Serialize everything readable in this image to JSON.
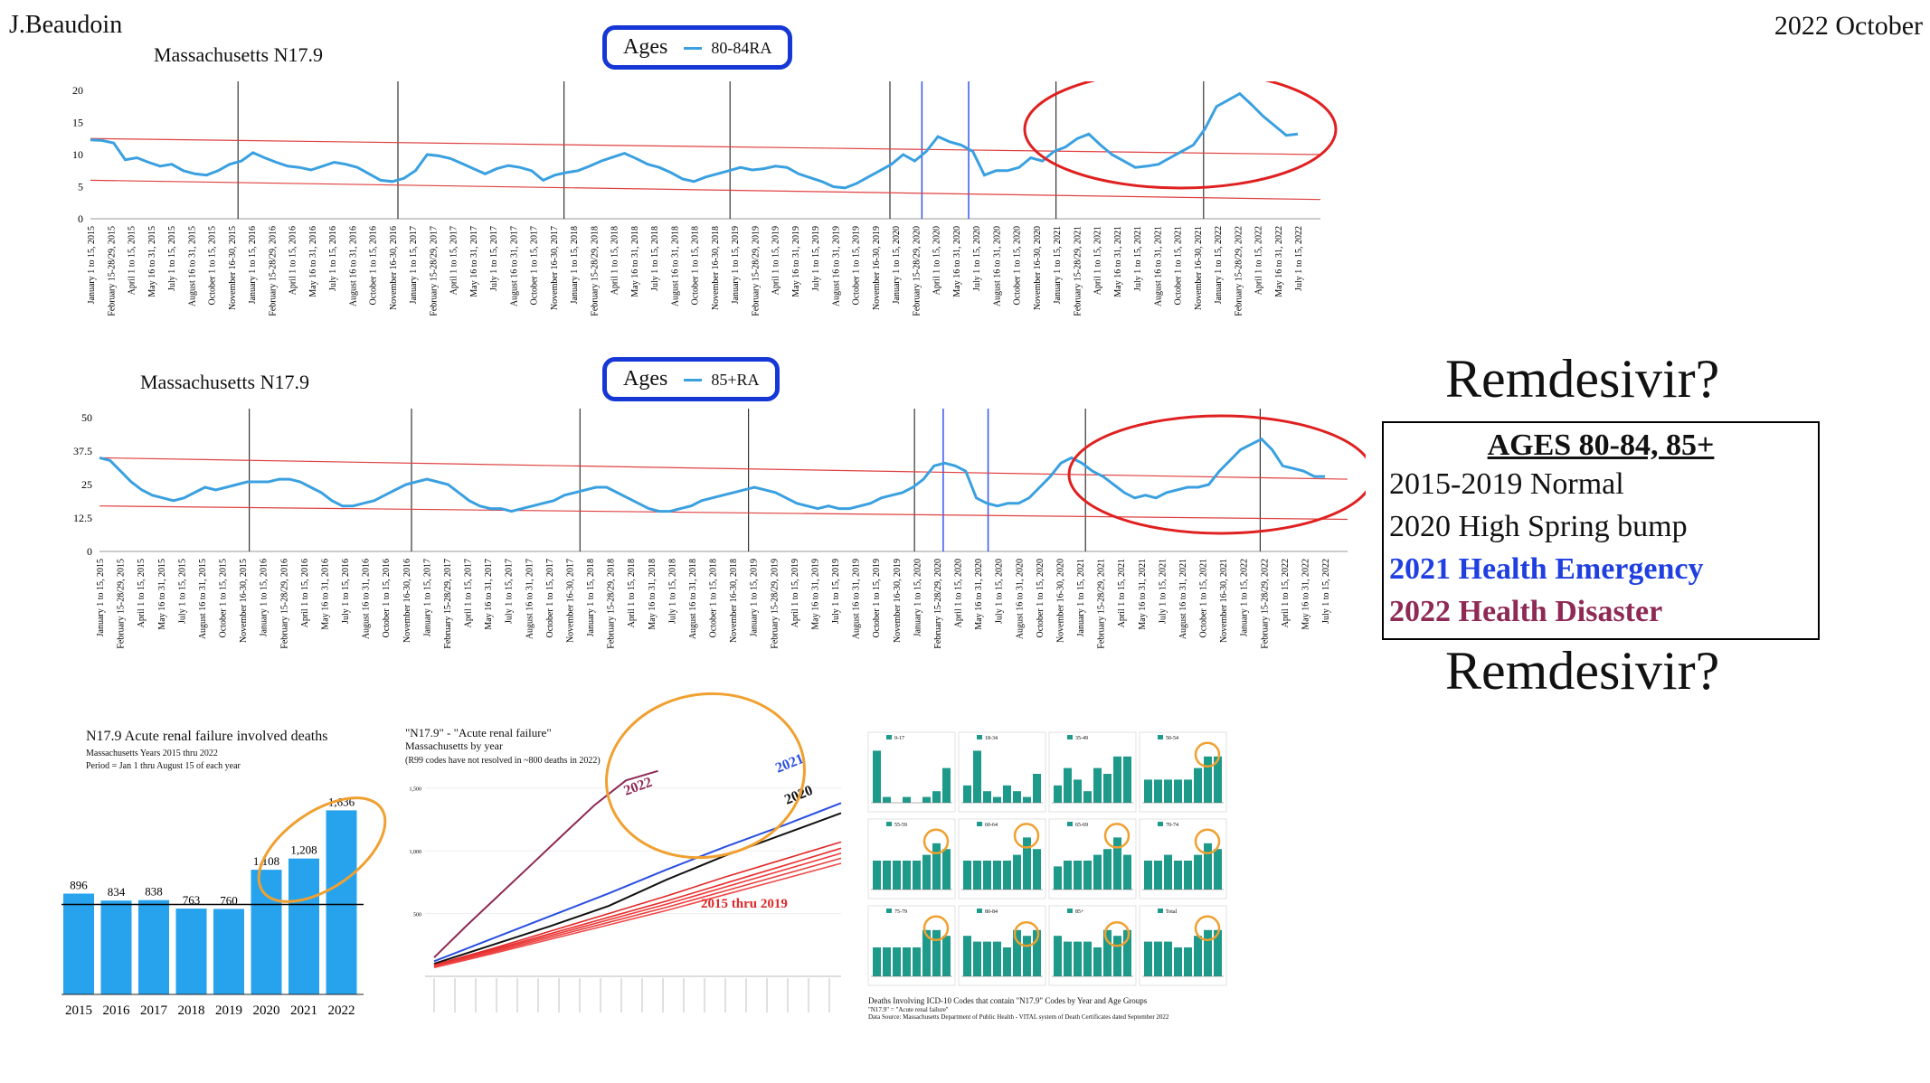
{
  "header": {
    "author": "J.Beaudoin",
    "date": "2022 October"
  },
  "sidebar": {
    "remdesivir_top": "Remdesivir?",
    "remdesivir_bottom": "Remdesivir?",
    "box_title": "AGES 80-84, 85+",
    "lines": [
      "2015-2019 Normal",
      "2020 High Spring bump",
      "2021 Health Emergency",
      "2022 Health Disaster"
    ],
    "colors": {
      "emergency": "#1f3fe0",
      "disaster": "#8e2a55"
    }
  },
  "colors": {
    "series": "#3aa0e0",
    "trend": "#e04040",
    "circle": "#e02020",
    "legend_border": "#1537d6",
    "orange": "#f0a030",
    "bar": "#27a3ee",
    "teal": "#1e9a8a"
  },
  "chart_data": [
    {
      "type": "line",
      "title": "Massachusetts N17.9",
      "legend_title": "Ages",
      "series": [
        {
          "name": "80-84RA",
          "values": [
            12.3,
            12.2,
            11.8,
            9.2,
            9.5,
            8.8,
            8.2,
            8.5,
            7.5,
            7.0,
            6.8,
            7.5,
            8.5,
            9.0,
            10.3,
            9.5,
            8.8,
            8.2,
            8.0,
            7.6,
            8.2,
            8.8,
            8.5,
            8.0,
            7.0,
            6.0,
            5.8,
            6.3,
            7.5,
            10.0,
            9.8,
            9.4,
            8.6,
            7.8,
            7.0,
            7.8,
            8.3,
            8.0,
            7.5,
            6.0,
            6.8,
            7.2,
            7.5,
            8.2,
            9.0,
            9.6,
            10.2,
            9.4,
            8.5,
            8.0,
            7.2,
            6.2,
            5.8,
            6.5,
            7.0,
            7.5,
            8.0,
            7.6,
            7.8,
            8.2,
            8.0,
            7.0,
            6.4,
            5.8,
            5.0,
            4.8,
            5.5,
            6.5,
            7.5,
            8.5,
            10.0,
            9.0,
            10.5,
            12.8,
            12.0,
            11.5,
            10.5,
            6.8,
            7.5,
            7.5,
            8.0,
            9.5,
            9.0,
            10.5,
            11.2,
            12.5,
            13.2,
            11.5,
            10.0,
            9.0,
            8.0,
            8.2,
            8.5,
            9.5,
            10.5,
            11.5,
            14.0,
            17.5,
            18.5,
            19.5,
            17.8,
            16.0,
            14.5,
            13.0,
            13.2
          ]
        }
      ],
      "x_tick_labels": [
        "January 1 to 15, 2015",
        "February 15-28/29, 2015",
        "April 1 to 15, 2015",
        "May 16 to 31, 2015",
        "July 1 to 15, 2015",
        "August 16 to 31, 2015",
        "October 1 to 15, 2015",
        "November 16-30, 2015",
        "January 1 to 15, 2016",
        "February 15-28/29, 2016",
        "April 1 to 15, 2016",
        "May 16 to 31, 2016",
        "July 1 to 15, 2016",
        "August 16 to 31, 2016",
        "October 1 to 15, 2016",
        "November 16-30, 2016",
        "January 1 to 15, 2017",
        "February 15-28/29, 2017",
        "April 1 to 15, 2017",
        "May 16 to 31, 2017",
        "July 1 to 15, 2017",
        "August 16 to 31, 2017",
        "October 1 to 15, 2017",
        "November 16-30, 2017",
        "January 1 to 15, 2018",
        "February 15-28/29, 2018",
        "April 1 to 15, 2018",
        "May 16 to 31, 2018",
        "July 1 to 15, 2018",
        "August 16 to 31, 2018",
        "October 1 to 15, 2018",
        "November 16-30, 2018",
        "January 1 to 15, 2019",
        "February 15-28/29, 2019",
        "April 1 to 15, 2019",
        "May 16 to 31, 2019",
        "July 1 to 15, 2019",
        "August 16 to 31, 2019",
        "October 1 to 15, 2019",
        "November 16-30, 2019",
        "January 1 to 15, 2020",
        "February 15-28/29, 2020",
        "April 1 to 15, 2020",
        "May 16 to 31, 2020",
        "July 1 to 15, 2020",
        "August 16 to 31, 2020",
        "October 1 to 15, 2020",
        "November 16-30, 2020",
        "January 1 to 15, 2021",
        "February 15-28/29, 2021",
        "April 1 to 15, 2021",
        "May 16 to 31, 2021",
        "July 1 to 15, 2021",
        "August 16 to 31, 2021",
        "October 1 to 15, 2021",
        "November 16-30, 2021",
        "January 1 to 15, 2022",
        "February 15-28/29, 2022",
        "April 1 to 15, 2022",
        "May 16 to 31, 2022",
        "July 1 to 15, 2022"
      ],
      "y_ticks": [
        "0",
        "5",
        "10",
        "15",
        "20"
      ],
      "ylim": [
        0,
        20
      ]
    },
    {
      "type": "line",
      "title": "Massachusetts N17.9",
      "legend_title": "Ages",
      "series": [
        {
          "name": "85+RA",
          "values": [
            35,
            34,
            30,
            26,
            23,
            21,
            20,
            19,
            20,
            22,
            24,
            23,
            24,
            25,
            26,
            26,
            26,
            27,
            27,
            26,
            24,
            22,
            19,
            17,
            17,
            18,
            19,
            21,
            23,
            25,
            26,
            27,
            26,
            25,
            22,
            19,
            17,
            16,
            16,
            15,
            16,
            17,
            18,
            19,
            21,
            22,
            23,
            24,
            24,
            22,
            20,
            18,
            16,
            15,
            15,
            16,
            17,
            19,
            20,
            21,
            22,
            23,
            24,
            23,
            22,
            20,
            18,
            17,
            16,
            17,
            16,
            16,
            17,
            18,
            20,
            21,
            22,
            24,
            27,
            32,
            33,
            32,
            30,
            20,
            18,
            17,
            18,
            18,
            20,
            24,
            28,
            33,
            35,
            33,
            30,
            28,
            25,
            22,
            20,
            21,
            20,
            22,
            23,
            24,
            24,
            25,
            30,
            34,
            38,
            40,
            42,
            38,
            32,
            31,
            30,
            28,
            28
          ]
        }
      ],
      "x_tick_labels": [
        "January 1 to 15, 2015",
        "February 15-28/29, 2015",
        "April 1 to 15, 2015",
        "May 16 to 31, 2015",
        "July 1 to 15, 2015",
        "August 16 to 31, 2015",
        "October 1 to 15, 2015",
        "November 16-30, 2015",
        "January 1 to 15, 2016",
        "February 15-28/29, 2016",
        "April 1 to 15, 2016",
        "May 16 to 31, 2016",
        "July 1 to 15, 2016",
        "August 16 to 31, 2016",
        "October 1 to 15, 2016",
        "November 16-30, 2016",
        "January 1 to 15, 2017",
        "February 15-28/29, 2017",
        "April 1 to 15, 2017",
        "May 16 to 31, 2017",
        "July 1 to 15, 2017",
        "August 16 to 31, 2017",
        "October 1 to 15, 2017",
        "November 16-30, 2017",
        "January 1 to 15, 2018",
        "February 15-28/29, 2018",
        "April 1 to 15, 2018",
        "May 16 to 31, 2018",
        "July 1 to 15, 2018",
        "August 16 to 31, 2018",
        "October 1 to 15, 2018",
        "November 16-30, 2018",
        "January 1 to 15, 2019",
        "February 15-28/29, 2019",
        "April 1 to 15, 2019",
        "May 16 to 31, 2019",
        "July 1 to 15, 2019",
        "August 16 to 31, 2019",
        "October 1 to 15, 2019",
        "November 16-30, 2019",
        "January 1 to 15, 2020",
        "February 15-28/29, 2020",
        "April 1 to 15, 2020",
        "May 16 to 31, 2020",
        "July 1 to 15, 2020",
        "August 16 to 31, 2020",
        "October 1 to 15, 2020",
        "November 16-30, 2020",
        "January 1 to 15, 2021",
        "February 15-28/29, 2021",
        "April 1 to 15, 2021",
        "May 16 to 31, 2021",
        "July 1 to 15, 2021",
        "August 16 to 31, 2021",
        "October 1 to 15, 2021",
        "November 16-30, 2021",
        "January 1 to 15, 2022",
        "February 15-28/29, 2022",
        "April 1 to 15, 2022",
        "May 16 to 31, 2022",
        "July 1 to 15, 2022"
      ],
      "y_ticks": [
        "0",
        "12.5",
        "25",
        "37.5",
        "50"
      ],
      "ylim": [
        0,
        50
      ]
    },
    {
      "type": "bar",
      "title": "N17.9 Acute renal failure involved deaths",
      "subtitle": [
        "Massachusetts Years 2015 thru 2022",
        "Period = Jan 1 thru August 15 of each year"
      ],
      "categories": [
        "2015",
        "2016",
        "2017",
        "2018",
        "2019",
        "2020",
        "2021",
        "2022"
      ],
      "values": [
        896,
        834,
        838,
        763,
        760,
        1108,
        1208,
        1636
      ],
      "value_labels": [
        "896",
        "834",
        "838",
        "763",
        "760",
        "1,108",
        "1,208",
        "1,636"
      ],
      "ylim": [
        0,
        1800
      ]
    },
    {
      "type": "line",
      "title": "\"N17.9\" - \"Acute renal failure\"",
      "subtitle": [
        "Massachusetts by year",
        "(R99 codes have not resolved in ~800 deaths in 2022)"
      ],
      "annotations": [
        "2022",
        "2021",
        "2020",
        "2015 thru 2019"
      ],
      "y_ticks": [
        "500",
        "1,000",
        "1,500"
      ],
      "ylim": [
        0,
        1800
      ],
      "series": [
        {
          "values": [
            150,
            400,
            640,
            880,
            1120,
            1360,
            1560,
            1636
          ]
        },
        {
          "values": [
            120,
            300,
            480,
            660,
            850,
            1030,
            1200,
            1380
          ]
        },
        {
          "values": [
            100,
            250,
            400,
            560,
            770,
            960,
            1130,
            1300
          ]
        },
        {
          "values": [
            90,
            220,
            360,
            500,
            640,
            790,
            930,
            1070
          ]
        },
        {
          "values": [
            85,
            210,
            340,
            470,
            600,
            740,
            880,
            1020
          ]
        },
        {
          "values": [
            80,
            200,
            325,
            450,
            575,
            710,
            845,
            980
          ]
        },
        {
          "values": [
            75,
            190,
            310,
            430,
            550,
            680,
            810,
            940
          ]
        },
        {
          "values": [
            70,
            180,
            295,
            410,
            525,
            650,
            775,
            900
          ]
        }
      ]
    },
    {
      "type": "bar",
      "title": "Deaths Involving ICD-10 Codes that contain \"N17.9\" Codes by Year and Age Groups",
      "subtitle": [
        "\"N17.9\" = \"Acute renal failure\"",
        "Data Source:  Massachusetts Department of Public Health - VITAL system of Death Certificates dated September 2022"
      ],
      "panel_labels": [
        "0-17",
        "18-34",
        "35-49",
        "50-54",
        "55-59",
        "60-64",
        "65-69",
        "70-74",
        "75-79",
        "80-84",
        "85+",
        "Total"
      ],
      "panels": [
        [
          0.9,
          0.1,
          0.0,
          0.1,
          0.0,
          0.1,
          0.2,
          0.6
        ],
        [
          0.3,
          0.9,
          0.2,
          0.1,
          0.3,
          0.2,
          0.1,
          0.5
        ],
        [
          0.3,
          0.6,
          0.4,
          0.2,
          0.6,
          0.5,
          0.8,
          0.8
        ],
        [
          0.4,
          0.4,
          0.4,
          0.4,
          0.4,
          0.6,
          0.8,
          0.8
        ],
        [
          0.5,
          0.5,
          0.5,
          0.5,
          0.5,
          0.6,
          0.8,
          0.7
        ],
        [
          0.5,
          0.5,
          0.5,
          0.5,
          0.5,
          0.6,
          0.9,
          0.7
        ],
        [
          0.4,
          0.5,
          0.5,
          0.5,
          0.6,
          0.7,
          0.9,
          0.6
        ],
        [
          0.5,
          0.5,
          0.6,
          0.5,
          0.5,
          0.6,
          0.8,
          0.7
        ],
        [
          0.5,
          0.5,
          0.5,
          0.5,
          0.5,
          0.8,
          0.8,
          0.7
        ],
        [
          0.7,
          0.6,
          0.6,
          0.6,
          0.5,
          0.8,
          0.7,
          0.8
        ],
        [
          0.7,
          0.6,
          0.6,
          0.6,
          0.5,
          0.8,
          0.7,
          0.8
        ],
        [
          0.6,
          0.6,
          0.6,
          0.5,
          0.5,
          0.7,
          0.8,
          0.8
        ]
      ]
    }
  ]
}
